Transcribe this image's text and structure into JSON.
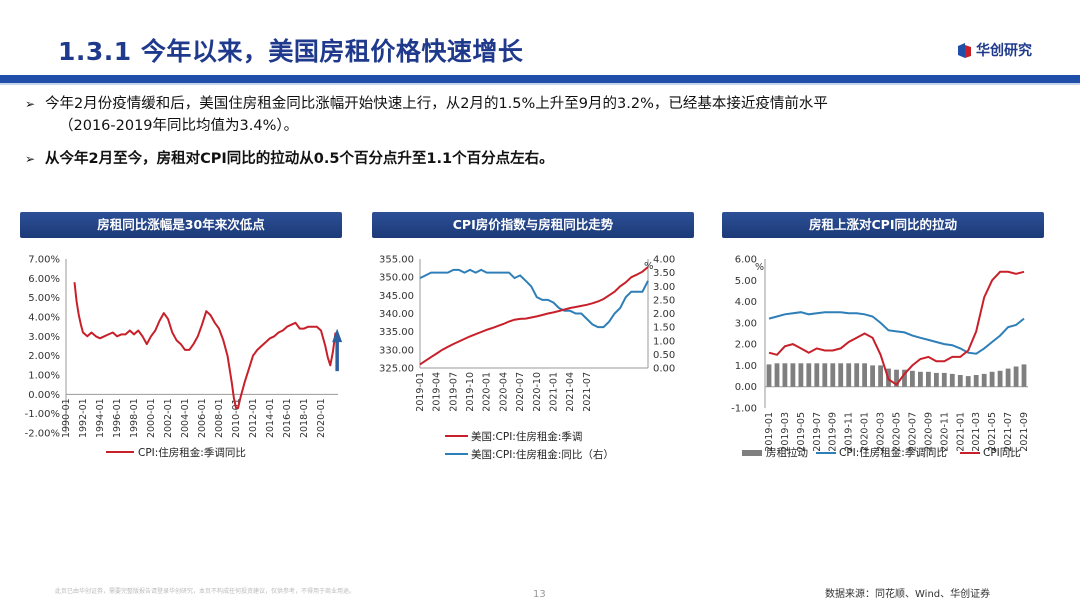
{
  "header": {
    "title": "1.3.1 今年以来，美国房租价格快速增长",
    "logo_text": "华创研究",
    "accent_color": "#1f4fa8",
    "logo_red": "#c8202a"
  },
  "bullets": {
    "b1_line1": "今年2月份疫情缓和后，美国住房租金同比涨幅开始快速上行，从2月的1.5%上升至9月的3.2%，已经基本接近疫情前水平",
    "b1_line2": "（2016-2019年同比均值为3.4%）。",
    "b2": "从今年2月至今，房租对CPI同比的拉动从0.5个百分点升至1.1个百分点左右。"
  },
  "footer": {
    "disclaimer": "此页已由华创证券，需要完整版报告请登录华创研究，本页不构成任何投资建议，仅供参考，不得用于商业用途。",
    "page_number": "13",
    "source": "数据来源：同花顺、Wind、华创证券"
  },
  "chart_data": [
    {
      "type": "line",
      "title": "房租同比涨幅是30年来次低点",
      "series": [
        {
          "name": "CPI:住房租金:季调同比",
          "color": "#c8202a",
          "points": [
            [
              1991.0,
              5.8
            ],
            [
              1991.25,
              4.8
            ],
            [
              1991.5,
              4.1
            ],
            [
              1991.75,
              3.6
            ],
            [
              1992.0,
              3.2
            ],
            [
              1992.5,
              3.0
            ],
            [
              1993.0,
              3.2
            ],
            [
              1993.5,
              3.0
            ],
            [
              1994.0,
              2.9
            ],
            [
              1994.5,
              3.0
            ],
            [
              1995.0,
              3.1
            ],
            [
              1995.5,
              3.2
            ],
            [
              1996.0,
              3.0
            ],
            [
              1996.5,
              3.1
            ],
            [
              1997.0,
              3.1
            ],
            [
              1997.5,
              3.3
            ],
            [
              1998.0,
              3.1
            ],
            [
              1998.5,
              3.3
            ],
            [
              1999.0,
              3.0
            ],
            [
              1999.5,
              2.6
            ],
            [
              2000.0,
              3.0
            ],
            [
              2000.5,
              3.3
            ],
            [
              2001.0,
              3.8
            ],
            [
              2001.5,
              4.2
            ],
            [
              2002.0,
              3.9
            ],
            [
              2002.5,
              3.2
            ],
            [
              2003.0,
              2.8
            ],
            [
              2003.5,
              2.6
            ],
            [
              2004.0,
              2.3
            ],
            [
              2004.5,
              2.3
            ],
            [
              2005.0,
              2.6
            ],
            [
              2005.5,
              3.0
            ],
            [
              2006.0,
              3.6
            ],
            [
              2006.5,
              4.3
            ],
            [
              2007.0,
              4.1
            ],
            [
              2007.5,
              3.7
            ],
            [
              2008.0,
              3.4
            ],
            [
              2008.5,
              2.8
            ],
            [
              2009.0,
              2.0
            ],
            [
              2009.5,
              0.6
            ],
            [
              2009.75,
              -0.2
            ],
            [
              2010.0,
              -0.7
            ],
            [
              2010.25,
              -0.7
            ],
            [
              2010.5,
              -0.2
            ],
            [
              2010.75,
              0.2
            ],
            [
              2011.0,
              0.6
            ],
            [
              2011.5,
              1.3
            ],
            [
              2012.0,
              2.0
            ],
            [
              2012.5,
              2.3
            ],
            [
              2013.0,
              2.5
            ],
            [
              2013.5,
              2.7
            ],
            [
              2014.0,
              2.9
            ],
            [
              2014.5,
              3.0
            ],
            [
              2015.0,
              3.2
            ],
            [
              2015.5,
              3.3
            ],
            [
              2016.0,
              3.5
            ],
            [
              2016.5,
              3.6
            ],
            [
              2017.0,
              3.7
            ],
            [
              2017.5,
              3.4
            ],
            [
              2018.0,
              3.4
            ],
            [
              2018.5,
              3.5
            ],
            [
              2019.0,
              3.5
            ],
            [
              2019.5,
              3.5
            ],
            [
              2020.0,
              3.3
            ],
            [
              2020.5,
              2.5
            ],
            [
              2020.8,
              1.9
            ],
            [
              2021.1,
              1.5
            ],
            [
              2021.4,
              2.2
            ],
            [
              2021.7,
              3.2
            ]
          ]
        }
      ],
      "x_ticks": [
        "1990-01",
        "1992-01",
        "1994-01",
        "1996-01",
        "1998-01",
        "2000-01",
        "2002-01",
        "2004-01",
        "2006-01",
        "2008-01",
        "2010-01",
        "2012-01",
        "2014-01",
        "2016-01",
        "2018-01",
        "2020-01"
      ],
      "y_ticks": [
        "7.00%",
        "6.00%",
        "5.00%",
        "4.00%",
        "3.00%",
        "2.00%",
        "1.00%",
        "0.00%",
        "-1.00%",
        "-2.00%"
      ],
      "ylim": [
        -2,
        7
      ],
      "xlim": [
        1990,
        2022
      ],
      "annotation": "upward-arrow"
    },
    {
      "type": "line",
      "title": "CPI房价指数与房租同比走势",
      "series": [
        {
          "name": "美国:CPI:住房租金:季调",
          "axis": "left",
          "color": "#c8202a",
          "values": [
            326.0,
            327.0,
            328.0,
            329.0,
            330.0,
            330.8,
            331.6,
            332.3,
            333.0,
            333.7,
            334.3,
            334.9,
            335.5,
            336.0,
            336.6,
            337.1,
            337.8,
            338.3,
            338.5,
            338.6,
            338.9,
            339.2,
            339.6,
            340.0,
            340.3,
            340.7,
            341.1,
            341.5,
            341.8,
            342.1,
            342.4,
            342.8,
            343.3,
            344.0,
            345.0,
            346.0,
            347.5,
            348.6,
            350.0,
            350.7,
            351.5,
            352.8
          ]
        },
        {
          "name": "美国:CPI:住房租金:同比（右）",
          "axis": "right",
          "color": "#2e7fb8",
          "values": [
            3.3,
            3.4,
            3.5,
            3.5,
            3.5,
            3.5,
            3.6,
            3.6,
            3.5,
            3.6,
            3.5,
            3.6,
            3.5,
            3.5,
            3.5,
            3.5,
            3.5,
            3.3,
            3.4,
            3.2,
            3.0,
            2.6,
            2.5,
            2.5,
            2.4,
            2.2,
            2.1,
            2.1,
            2.0,
            2.0,
            1.8,
            1.6,
            1.5,
            1.5,
            1.7,
            2.0,
            2.2,
            2.6,
            2.8,
            2.8,
            2.8,
            3.2
          ]
        }
      ],
      "categories_labels": [
        "2019-01",
        "2019-04",
        "2019-07",
        "2019-10",
        "2020-01",
        "2020-04",
        "2020-07",
        "2020-10",
        "2021-01",
        "2021-04",
        "2021-07"
      ],
      "y_left_ticks": [
        "355.00",
        "350.00",
        "345.00",
        "340.00",
        "335.00",
        "330.00",
        "325.00"
      ],
      "y_right_ticks": [
        "4.00",
        "3.50",
        "3.00",
        "2.50",
        "2.00",
        "1.50",
        "1.00",
        "0.50",
        "0.00"
      ],
      "ylim_left": [
        325,
        355
      ],
      "ylim_right": [
        0,
        4
      ],
      "right_unit": "%"
    },
    {
      "type": "bar+line",
      "title": "房租上涨对CPI同比的拉动",
      "categories": [
        "2019-01",
        "2019-02",
        "2019-03",
        "2019-04",
        "2019-05",
        "2019-06",
        "2019-07",
        "2019-08",
        "2019-09",
        "2019-10",
        "2019-11",
        "2019-12",
        "2020-01",
        "2020-02",
        "2020-03",
        "2020-04",
        "2020-05",
        "2020-06",
        "2020-07",
        "2020-08",
        "2020-09",
        "2020-10",
        "2020-11",
        "2020-12",
        "2021-01",
        "2021-02",
        "2021-03",
        "2021-04",
        "2021-05",
        "2021-06",
        "2021-07",
        "2021-08",
        "2021-09"
      ],
      "x_tick_labels": [
        "2019-01",
        "2019-03",
        "2019-05",
        "2019-07",
        "2019-09",
        "2019-11",
        "2020-01",
        "2020-03",
        "2020-05",
        "2020-07",
        "2020-09",
        "2020-11",
        "2021-01",
        "2021-03",
        "2021-05",
        "2021-07",
        "2021-09"
      ],
      "series": [
        {
          "name": "房租拉动",
          "kind": "bar",
          "color": "#7f7f7f",
          "values": [
            1.05,
            1.1,
            1.1,
            1.1,
            1.1,
            1.1,
            1.1,
            1.1,
            1.1,
            1.1,
            1.1,
            1.1,
            1.1,
            1.0,
            1.0,
            0.85,
            0.8,
            0.8,
            0.75,
            0.7,
            0.7,
            0.65,
            0.65,
            0.6,
            0.55,
            0.5,
            0.55,
            0.6,
            0.7,
            0.75,
            0.85,
            0.95,
            1.05
          ]
        },
        {
          "name": "CPI:住房租金:季调同比",
          "kind": "line",
          "color": "#2e7fb8",
          "values": [
            3.2,
            3.3,
            3.4,
            3.45,
            3.5,
            3.4,
            3.45,
            3.5,
            3.5,
            3.5,
            3.45,
            3.45,
            3.4,
            3.3,
            3.0,
            2.65,
            2.6,
            2.55,
            2.4,
            2.3,
            2.2,
            2.1,
            2.0,
            1.95,
            1.8,
            1.6,
            1.55,
            1.8,
            2.1,
            2.4,
            2.8,
            2.9,
            3.2
          ]
        },
        {
          "name": "CPI同比",
          "kind": "line",
          "color": "#c8202a",
          "values": [
            1.6,
            1.5,
            1.9,
            2.0,
            1.8,
            1.6,
            1.8,
            1.7,
            1.7,
            1.8,
            2.1,
            2.3,
            2.5,
            2.3,
            1.5,
            0.35,
            0.1,
            0.6,
            1.0,
            1.3,
            1.4,
            1.2,
            1.2,
            1.4,
            1.4,
            1.7,
            2.6,
            4.2,
            5.0,
            5.4,
            5.4,
            5.3,
            5.4
          ]
        }
      ],
      "y_ticks": [
        "6.00",
        "5.00",
        "4.00",
        "3.00",
        "2.00",
        "1.00",
        "0.00",
        "-1.00"
      ],
      "ylim": [
        -1,
        6
      ],
      "y_unit": "%"
    }
  ]
}
